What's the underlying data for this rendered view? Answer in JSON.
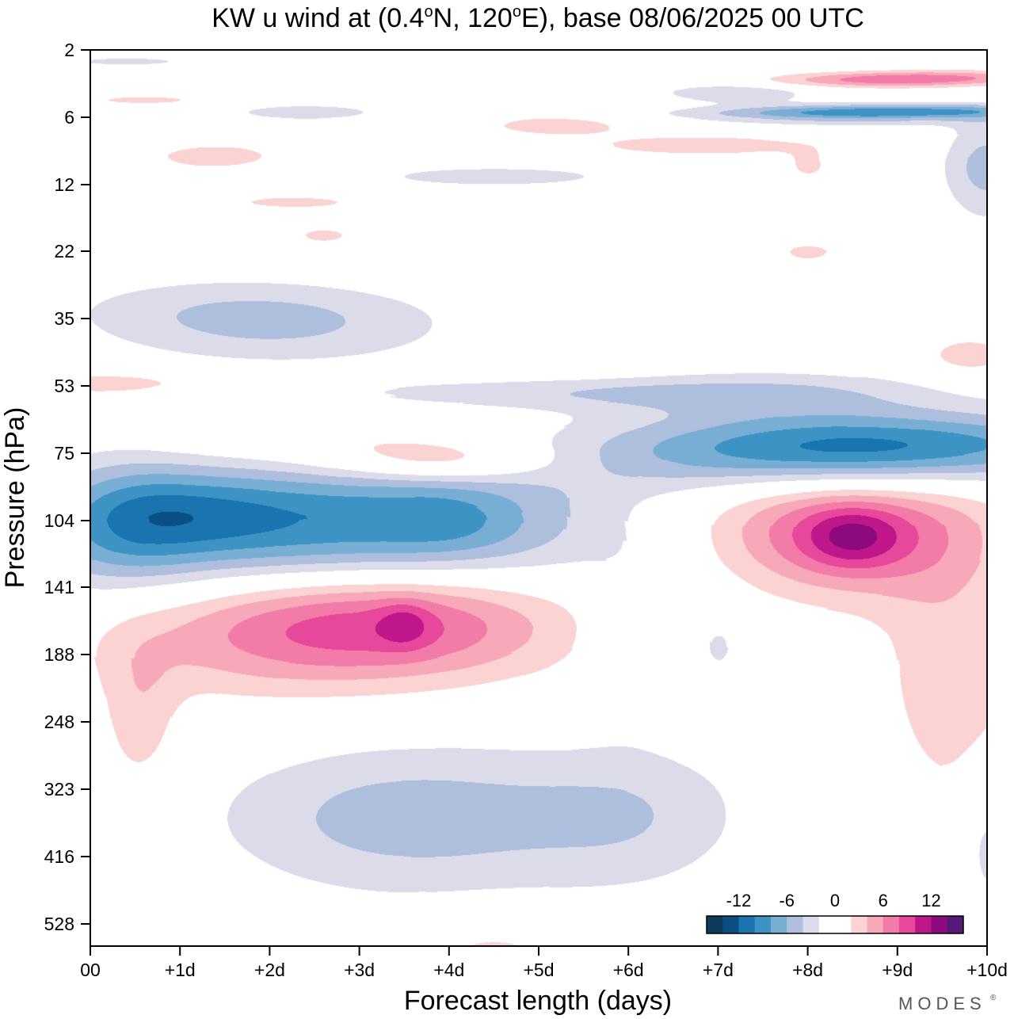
{
  "chart_data": {
    "type": "contour",
    "title": "KW u wind at (0.4°N, 120°E),  base 08/06/2025  00 UTC",
    "title_parts": {
      "prefix": "KW u wind at (0.4",
      "deg1": "o",
      "mid": "N, 120",
      "deg2": "o",
      "suffix": "E),  base 08/06/2025  00 UTC"
    },
    "xlabel": "Forecast length (days)",
    "ylabel": "Pressure (hPa)",
    "x_ticks": [
      "00",
      "+1d",
      "+2d",
      "+3d",
      "+4d",
      "+5d",
      "+6d",
      "+7d",
      "+8d",
      "+9d",
      "+10d"
    ],
    "xlim": [
      0,
      10
    ],
    "y_ticks": [
      "2",
      "6",
      "12",
      "22",
      "35",
      "53",
      "75",
      "104",
      "141",
      "188",
      "248",
      "323",
      "416",
      "528"
    ],
    "y_axis": "log-pressure, inverted (2 hPa at top)",
    "grid": false,
    "colorbar": {
      "tick_labels": [
        "-12",
        "-6",
        "0",
        "6",
        "12"
      ],
      "levels": [
        -16,
        -14,
        -12,
        -10,
        -8,
        -6,
        -4,
        -2,
        0,
        2,
        4,
        6,
        8,
        10,
        12,
        14,
        16
      ],
      "colors": [
        "#0d3b5c",
        "#0b4f82",
        "#1a74b0",
        "#3d94c4",
        "#79aed4",
        "#aebfdd",
        "#dcdbea",
        "#ffffff",
        "#ffffff",
        "#fbd3d3",
        "#f7a8b9",
        "#f37ba7",
        "#e8489b",
        "#c0168b",
        "#8c0a7e",
        "#551a77"
      ],
      "placement": "lower-right"
    },
    "blobs": [
      {
        "x": 2.8,
        "p": 104,
        "rx": 2.55,
        "rlog": 0.09,
        "amp": -10,
        "skew": -0.28
      },
      {
        "x": 1.1,
        "p": 100,
        "rx": 0.75,
        "rlog": 0.06,
        "amp": -3
      },
      {
        "x": 4.0,
        "p": 104,
        "rx": 0.55,
        "rlog": 0.05,
        "amp": -2
      },
      {
        "x": 0.4,
        "p": 104,
        "rx": 0.55,
        "rlog": 0.1,
        "amp": -3
      },
      {
        "x": 3.35,
        "p": 165,
        "rx": 1.35,
        "rlog": 0.07,
        "amp": 8.5
      },
      {
        "x": 3.5,
        "p": 165,
        "rx": 0.2,
        "rlog": 0.03,
        "amp": 3
      },
      {
        "x": 1.6,
        "p": 175,
        "rx": 1.3,
        "rlog": 0.08,
        "amp": 3.2
      },
      {
        "x": 0.55,
        "p": 245,
        "rx": 0.3,
        "rlog": 0.1,
        "amp": 3
      },
      {
        "x": 8.4,
        "p": 112,
        "rx": 0.9,
        "rlog": 0.08,
        "amp": 8
      },
      {
        "x": 8.5,
        "p": 112,
        "rx": 0.35,
        "rlog": 0.04,
        "amp": 4
      },
      {
        "x": 6.7,
        "p": 100,
        "rx": 2.3,
        "rlog": 0.08,
        "amp": 2.8,
        "skew": 0.2
      },
      {
        "x": 9.6,
        "p": 190,
        "rx": 0.6,
        "rlog": 0.2,
        "amp": 3.2
      },
      {
        "x": 3.9,
        "p": 78,
        "rx": 0.9,
        "rlog": 0.03,
        "amp": 5
      },
      {
        "x": 2.8,
        "p": 70,
        "rx": 1.4,
        "rlog": 0.035,
        "amp": 2.5
      },
      {
        "x": 8.6,
        "p": 73,
        "rx": 2.0,
        "rlog": 0.055,
        "amp": -11,
        "skew": -0.3
      },
      {
        "x": 7.6,
        "p": 55,
        "rx": 1.4,
        "rlog": 0.05,
        "amp": -3
      },
      {
        "x": 5.3,
        "p": 55,
        "rx": 2.0,
        "rlog": 0.025,
        "amp": -3
      },
      {
        "x": 1.9,
        "p": 35,
        "rx": 1.4,
        "rlog": 0.08,
        "amp": -5,
        "skew": 0.2
      },
      {
        "x": 0.2,
        "p": 52,
        "rx": 0.9,
        "rlog": 0.025,
        "amp": 3
      },
      {
        "x": 9.8,
        "p": 44,
        "rx": 0.4,
        "rlog": 0.04,
        "amp": 3
      },
      {
        "x": 3.6,
        "p": 360,
        "rx": 1.5,
        "rlog": 0.085,
        "amp": -5.2
      },
      {
        "x": 6.1,
        "p": 355,
        "rx": 0.9,
        "rlog": 0.085,
        "amp": -3
      },
      {
        "x": 6.0,
        "p": 175,
        "rx": 0.3,
        "rlog": 0.09,
        "amp": -2.5
      },
      {
        "x": 7.0,
        "p": 180,
        "rx": 0.2,
        "rlog": 0.05,
        "amp": -2.5
      },
      {
        "x": 10.0,
        "p": 400,
        "rx": 0.2,
        "rlog": 0.08,
        "amp": -3
      },
      {
        "x": 4.5,
        "p": 600,
        "rx": 0.6,
        "rlog": 0.04,
        "amp": 3
      },
      {
        "x": 8.8,
        "p": 5.5,
        "rx": 1.3,
        "rlog": 0.04,
        "amp": -10,
        "skew": -0.45
      },
      {
        "x": 7.2,
        "p": 4.0,
        "rx": 0.6,
        "rlog": 0.05,
        "amp": -4
      },
      {
        "x": 9.1,
        "p": 3.2,
        "rx": 1.0,
        "rlog": 0.04,
        "amp": 8,
        "skew": -0.45
      },
      {
        "x": 10.0,
        "p": 10,
        "rx": 0.35,
        "rlog": 0.15,
        "amp": -5
      },
      {
        "x": 6.8,
        "p": 8,
        "rx": 1.1,
        "rlog": 0.04,
        "amp": 3
      },
      {
        "x": 5.2,
        "p": 6.5,
        "rx": 0.55,
        "rlog": 0.03,
        "amp": 3.5
      },
      {
        "x": 2.4,
        "p": 5.5,
        "rx": 0.6,
        "rlog": 0.04,
        "amp": -3.5
      },
      {
        "x": 4.5,
        "p": 11,
        "rx": 1.5,
        "rlog": 0.05,
        "amp": -2.5
      },
      {
        "x": 0.6,
        "p": 4.5,
        "rx": 0.6,
        "rlog": 0.03,
        "amp": 2.5
      },
      {
        "x": 1.4,
        "p": 9,
        "rx": 0.6,
        "rlog": 0.05,
        "amp": 3
      },
      {
        "x": 2.3,
        "p": 14,
        "rx": 0.8,
        "rlog": 0.03,
        "amp": 2.5
      },
      {
        "x": 2.6,
        "p": 19,
        "rx": 0.3,
        "rlog": 0.03,
        "amp": 2.5
      },
      {
        "x": 0.4,
        "p": 2.4,
        "rx": 0.7,
        "rlog": 0.03,
        "amp": -2.5
      },
      {
        "x": 8.0,
        "p": 10,
        "rx": 0.2,
        "rlog": 0.05,
        "amp": 2.5
      },
      {
        "x": 8.0,
        "p": 22,
        "rx": 0.3,
        "rlog": 0.03,
        "amp": 2.5
      }
    ]
  },
  "branding": {
    "logo_text": "MODES",
    "logo_mark": "®"
  }
}
